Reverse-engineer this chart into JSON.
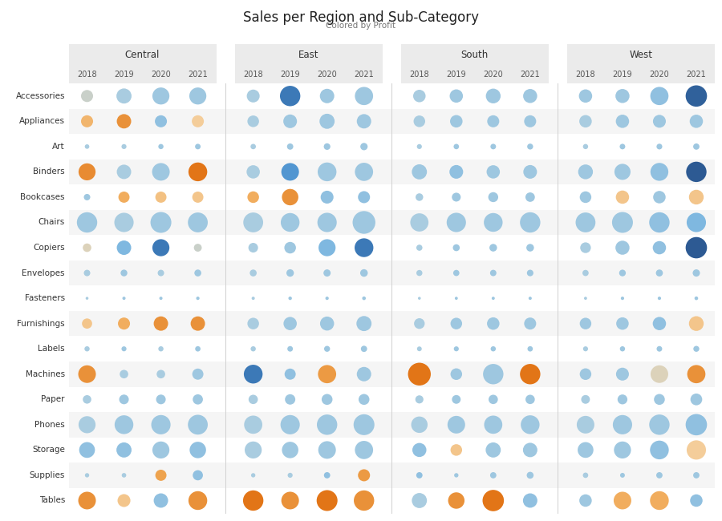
{
  "title": "Sales per Region and Sub-Category",
  "subtitle": "Colored by Profit",
  "regions": [
    "Central",
    "East",
    "South",
    "West"
  ],
  "years": [
    "2018",
    "2019",
    "2020",
    "2021"
  ],
  "subcategories": [
    "Accessories",
    "Appliances",
    "Art",
    "Binders",
    "Bookcases",
    "Chairs",
    "Copiers",
    "Envelopes",
    "Fasteners",
    "Furnishings",
    "Labels",
    "Machines",
    "Paper",
    "Phones",
    "Storage",
    "Supplies",
    "Tables"
  ],
  "background_color": "#ffffff",
  "header_bg": "#ebebeb",
  "sales": {
    "Central": {
      "Accessories": [
        700,
        1100,
        1400,
        1400
      ],
      "Appliances": [
        700,
        1000,
        700,
        700
      ],
      "Art": [
        100,
        120,
        130,
        150
      ],
      "Binders": [
        1400,
        1000,
        1500,
        1700
      ],
      "Bookcases": [
        200,
        600,
        600,
        600
      ],
      "Chairs": [
        2000,
        1800,
        2100,
        1900
      ],
      "Copiers": [
        350,
        1000,
        1400,
        300
      ],
      "Envelopes": [
        200,
        220,
        200,
        230
      ],
      "Fasteners": [
        40,
        50,
        50,
        55
      ],
      "Furnishings": [
        500,
        700,
        1000,
        1000
      ],
      "Labels": [
        130,
        120,
        130,
        140
      ],
      "Machines": [
        1500,
        350,
        350,
        600
      ],
      "Paper": [
        350,
        450,
        450,
        500
      ],
      "Phones": [
        1400,
        1700,
        1800,
        1900
      ],
      "Storage": [
        1200,
        1100,
        1400,
        1300
      ],
      "Supplies": [
        90,
        100,
        600,
        500
      ],
      "Tables": [
        1500,
        800,
        1000,
        1700
      ]
    },
    "East": {
      "Accessories": [
        800,
        2000,
        1000,
        1600
      ],
      "Appliances": [
        650,
        900,
        1100,
        1000
      ],
      "Art": [
        140,
        190,
        210,
        260
      ],
      "Binders": [
        850,
        1500,
        1700,
        1600
      ],
      "Bookcases": [
        650,
        1300,
        800,
        700
      ],
      "Chairs": [
        1900,
        1700,
        1800,
        2500
      ],
      "Copiers": [
        450,
        650,
        1400,
        1700
      ],
      "Envelopes": [
        230,
        270,
        250,
        280
      ],
      "Fasteners": [
        50,
        60,
        55,
        65
      ],
      "Furnishings": [
        650,
        850,
        950,
        1100
      ],
      "Labels": [
        130,
        150,
        170,
        190
      ],
      "Machines": [
        1700,
        600,
        1600,
        1000
      ],
      "Paper": [
        420,
        520,
        570,
        570
      ],
      "Phones": [
        1600,
        1800,
        2000,
        2100
      ],
      "Storage": [
        1400,
        1300,
        1500,
        1600
      ],
      "Supplies": [
        90,
        120,
        190,
        700
      ],
      "Tables": [
        2000,
        1500,
        2100,
        2000
      ]
    },
    "South": {
      "Accessories": [
        750,
        850,
        1050,
        950
      ],
      "Appliances": [
        650,
        750,
        700,
        700
      ],
      "Art": [
        120,
        140,
        150,
        170
      ],
      "Binders": [
        1100,
        900,
        850,
        900
      ],
      "Bookcases": [
        280,
        380,
        480,
        430
      ],
      "Chairs": [
        1600,
        1800,
        1700,
        2000
      ],
      "Copiers": [
        180,
        230,
        280,
        280
      ],
      "Envelopes": [
        175,
        185,
        195,
        205
      ],
      "Fasteners": [
        40,
        45,
        48,
        50
      ],
      "Furnishings": [
        550,
        650,
        750,
        700
      ],
      "Labels": [
        110,
        120,
        130,
        140
      ],
      "Machines": [
        2500,
        650,
        2000,
        2000
      ],
      "Paper": [
        320,
        370,
        420,
        420
      ],
      "Phones": [
        1300,
        1500,
        1600,
        1700
      ],
      "Storage": [
        950,
        650,
        1100,
        1000
      ],
      "Supplies": [
        190,
        90,
        190,
        230
      ],
      "Tables": [
        1100,
        1300,
        2200,
        1000
      ]
    },
    "West": {
      "Accessories": [
        850,
        950,
        1600,
        2200
      ],
      "Appliances": [
        750,
        850,
        800,
        850
      ],
      "Art": [
        130,
        150,
        160,
        190
      ],
      "Binders": [
        1050,
        1250,
        1550,
        2000
      ],
      "Bookcases": [
        650,
        850,
        750,
        1050
      ],
      "Chairs": [
        1900,
        2100,
        2000,
        1800
      ],
      "Copiers": [
        550,
        950,
        850,
        2200
      ],
      "Envelopes": [
        185,
        215,
        235,
        255
      ],
      "Fasteners": [
        45,
        55,
        55,
        65
      ],
      "Furnishings": [
        650,
        750,
        850,
        1050
      ],
      "Labels": [
        120,
        130,
        150,
        170
      ],
      "Machines": [
        650,
        800,
        1500,
        1600
      ],
      "Paper": [
        370,
        470,
        570,
        670
      ],
      "Phones": [
        1500,
        1800,
        2000,
        2200
      ],
      "Storage": [
        1200,
        1400,
        1700,
        1800
      ],
      "Supplies": [
        140,
        110,
        190,
        190
      ],
      "Tables": [
        750,
        1500,
        1700,
        750
      ]
    }
  },
  "profit": {
    "Central": {
      "Accessories": [
        0.45,
        0.5,
        0.52,
        0.52
      ],
      "Appliances": [
        0.25,
        0.12,
        0.55,
        0.35
      ],
      "Art": [
        0.5,
        0.5,
        0.52,
        0.52
      ],
      "Binders": [
        0.1,
        0.5,
        0.52,
        0.02
      ],
      "Bookcases": [
        0.52,
        0.22,
        0.3,
        0.32
      ],
      "Chairs": [
        0.52,
        0.5,
        0.52,
        0.52
      ],
      "Copiers": [
        0.42,
        0.58,
        0.82,
        0.45
      ],
      "Envelopes": [
        0.5,
        0.52,
        0.5,
        0.52
      ],
      "Fasteners": [
        0.5,
        0.52,
        0.52,
        0.52
      ],
      "Furnishings": [
        0.32,
        0.22,
        0.12,
        0.12
      ],
      "Labels": [
        0.5,
        0.52,
        0.5,
        0.52
      ],
      "Machines": [
        0.12,
        0.5,
        0.5,
        0.52
      ],
      "Paper": [
        0.5,
        0.52,
        0.52,
        0.52
      ],
      "Phones": [
        0.5,
        0.52,
        0.52,
        0.52
      ],
      "Storage": [
        0.55,
        0.55,
        0.52,
        0.55
      ],
      "Supplies": [
        0.5,
        0.5,
        0.18,
        0.55
      ],
      "Tables": [
        0.12,
        0.32,
        0.55,
        0.12
      ]
    },
    "East": {
      "Accessories": [
        0.5,
        0.82,
        0.52,
        0.52
      ],
      "Appliances": [
        0.5,
        0.52,
        0.52,
        0.52
      ],
      "Art": [
        0.5,
        0.52,
        0.52,
        0.52
      ],
      "Binders": [
        0.5,
        0.72,
        0.52,
        0.52
      ],
      "Bookcases": [
        0.22,
        0.12,
        0.55,
        0.55
      ],
      "Chairs": [
        0.5,
        0.52,
        0.52,
        0.52
      ],
      "Copiers": [
        0.5,
        0.52,
        0.58,
        0.82
      ],
      "Envelopes": [
        0.5,
        0.52,
        0.52,
        0.52
      ],
      "Fasteners": [
        0.5,
        0.52,
        0.52,
        0.52
      ],
      "Furnishings": [
        0.5,
        0.52,
        0.52,
        0.52
      ],
      "Labels": [
        0.5,
        0.52,
        0.52,
        0.52
      ],
      "Machines": [
        0.82,
        0.55,
        0.15,
        0.52
      ],
      "Paper": [
        0.5,
        0.52,
        0.52,
        0.52
      ],
      "Phones": [
        0.5,
        0.52,
        0.52,
        0.52
      ],
      "Storage": [
        0.5,
        0.52,
        0.52,
        0.52
      ],
      "Supplies": [
        0.5,
        0.5,
        0.55,
        0.15
      ],
      "Tables": [
        0.02,
        0.12,
        0.02,
        0.12
      ]
    },
    "South": {
      "Accessories": [
        0.5,
        0.52,
        0.52,
        0.52
      ],
      "Appliances": [
        0.5,
        0.52,
        0.52,
        0.52
      ],
      "Art": [
        0.5,
        0.52,
        0.52,
        0.52
      ],
      "Binders": [
        0.52,
        0.55,
        0.52,
        0.52
      ],
      "Bookcases": [
        0.5,
        0.52,
        0.52,
        0.52
      ],
      "Chairs": [
        0.5,
        0.52,
        0.52,
        0.52
      ],
      "Copiers": [
        0.5,
        0.52,
        0.52,
        0.52
      ],
      "Envelopes": [
        0.5,
        0.52,
        0.52,
        0.52
      ],
      "Fasteners": [
        0.5,
        0.52,
        0.52,
        0.52
      ],
      "Furnishings": [
        0.5,
        0.52,
        0.52,
        0.52
      ],
      "Labels": [
        0.5,
        0.52,
        0.52,
        0.52
      ],
      "Machines": [
        0.02,
        0.52,
        0.52,
        0.02
      ],
      "Paper": [
        0.5,
        0.52,
        0.52,
        0.52
      ],
      "Phones": [
        0.5,
        0.52,
        0.52,
        0.52
      ],
      "Storage": [
        0.55,
        0.32,
        0.52,
        0.52
      ],
      "Supplies": [
        0.55,
        0.52,
        0.52,
        0.52
      ],
      "Tables": [
        0.5,
        0.12,
        0.02,
        0.55
      ]
    },
    "West": {
      "Accessories": [
        0.52,
        0.52,
        0.55,
        0.88
      ],
      "Appliances": [
        0.5,
        0.52,
        0.52,
        0.52
      ],
      "Art": [
        0.5,
        0.52,
        0.52,
        0.52
      ],
      "Binders": [
        0.52,
        0.52,
        0.55,
        0.9
      ],
      "Bookcases": [
        0.52,
        0.32,
        0.52,
        0.32
      ],
      "Chairs": [
        0.52,
        0.52,
        0.55,
        0.58
      ],
      "Copiers": [
        0.5,
        0.52,
        0.55,
        0.9
      ],
      "Envelopes": [
        0.5,
        0.52,
        0.52,
        0.52
      ],
      "Fasteners": [
        0.5,
        0.52,
        0.52,
        0.52
      ],
      "Furnishings": [
        0.52,
        0.52,
        0.55,
        0.32
      ],
      "Labels": [
        0.5,
        0.52,
        0.52,
        0.52
      ],
      "Machines": [
        0.52,
        0.52,
        0.42,
        0.12
      ],
      "Paper": [
        0.5,
        0.52,
        0.52,
        0.52
      ],
      "Phones": [
        0.5,
        0.52,
        0.52,
        0.55
      ],
      "Storage": [
        0.52,
        0.52,
        0.55,
        0.35
      ],
      "Supplies": [
        0.5,
        0.52,
        0.52,
        0.52
      ],
      "Tables": [
        0.52,
        0.22,
        0.22,
        0.55
      ]
    }
  }
}
